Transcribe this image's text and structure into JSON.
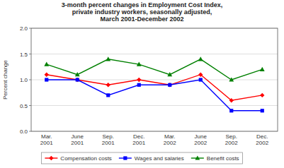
{
  "chart_data": {
    "type": "line",
    "title": "3-month percent changes in Employment Cost Index,\nprivate industry workers, seasonally adjusted,\nMarch 2001-December 2002",
    "categories": [
      "Mar.\n2001",
      "June\n2001",
      "Sep.\n2001",
      "Dec.\n2001",
      "Mar.\n2002",
      "June\n2002",
      "Sep.\n2002",
      "Dec.\n2002"
    ],
    "y_label": "Percent change",
    "ylim": [
      0.0,
      2.0
    ],
    "yticks": [
      {
        "value": 0.0,
        "label": "0.0"
      },
      0.5,
      {
        "value": 1.0,
        "label": "1.0"
      },
      1.5,
      {
        "value": 2.0,
        "label": "2.0"
      }
    ],
    "grid": true,
    "legend": "bottom",
    "series": [
      {
        "name": "Compensation costs",
        "color": "#FF0000",
        "marker": "diamond",
        "values": [
          1.1,
          1.0,
          0.9,
          1.0,
          0.9,
          1.1,
          0.6,
          0.7
        ]
      },
      {
        "name": "Wages and salaries",
        "color": "#0000FF",
        "marker": "square",
        "values": [
          1.0,
          1.0,
          0.7,
          0.9,
          0.9,
          1.0,
          0.4,
          0.4
        ]
      },
      {
        "name": "Benefit costs",
        "color": "#008000",
        "marker": "triangle",
        "values": [
          1.3,
          1.1,
          1.4,
          1.3,
          1.1,
          1.4,
          1.0,
          1.2
        ]
      }
    ]
  }
}
